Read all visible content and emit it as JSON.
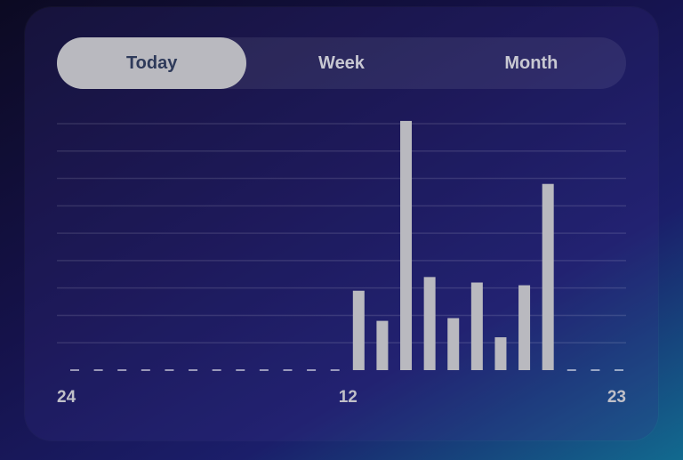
{
  "tabs": [
    "Today",
    "Week",
    "Month"
  ],
  "selected_tab": 0,
  "chart_data": {
    "type": "bar",
    "categories": [
      "24",
      null,
      null,
      null,
      null,
      null,
      null,
      null,
      null,
      null,
      null,
      null,
      "12",
      null,
      null,
      null,
      null,
      null,
      null,
      null,
      null,
      null,
      null,
      "23"
    ],
    "values": [
      0,
      0,
      0,
      0,
      0,
      0,
      0,
      0,
      0,
      0,
      0,
      0,
      2.9,
      1.8,
      9.1,
      3.4,
      1.9,
      3.2,
      1.2,
      3.1,
      6.8,
      0,
      0,
      0
    ],
    "color": "#b9b9bf",
    "ylim": [
      0,
      9
    ],
    "yticks": [
      1,
      2,
      3,
      4,
      5,
      6,
      7,
      8,
      9
    ],
    "grid": true
  }
}
